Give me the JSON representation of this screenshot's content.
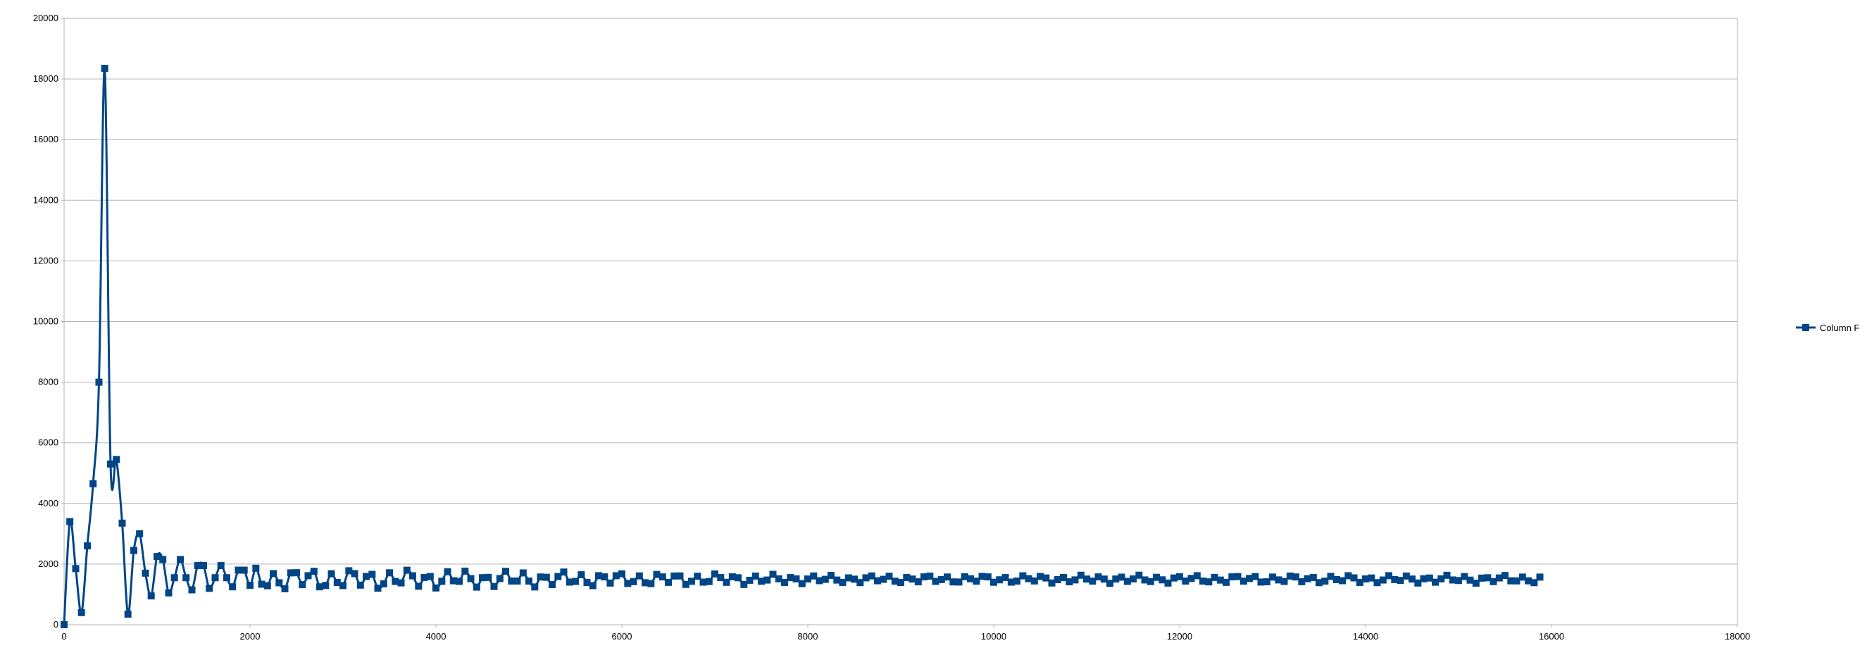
{
  "chart_data": {
    "type": "line",
    "title": "",
    "xlabel": "",
    "ylabel": "",
    "xlim": [
      0,
      18000
    ],
    "ylim": [
      0,
      20000
    ],
    "x_ticks": [
      0,
      2000,
      4000,
      6000,
      8000,
      10000,
      12000,
      14000,
      16000,
      18000
    ],
    "y_ticks": [
      0,
      2000,
      4000,
      6000,
      8000,
      10000,
      12000,
      14000,
      16000,
      18000,
      20000
    ],
    "x_tick_labels": [
      "0",
      "2000",
      "4000",
      "6000",
      "8000",
      "10000",
      "12000",
      "14000",
      "16000",
      "18000"
    ],
    "y_tick_labels": [
      "0",
      "2000",
      "4000",
      "6000",
      "8000",
      "10000",
      "12000",
      "14000",
      "16000",
      "18000",
      "20000"
    ],
    "grid": true,
    "legend_position": "right",
    "series": [
      {
        "name": "Column F",
        "color": "#004586",
        "marker": "square",
        "x": [
          0,
          62,
          125,
          187,
          250,
          312,
          375,
          437,
          500,
          562,
          625,
          687,
          750,
          812,
          875,
          937,
          1000,
          1062,
          1125,
          1187,
          1250,
          1312,
          1375,
          1437,
          1500,
          1562,
          1625,
          1687,
          1750,
          1812,
          1875,
          1937,
          2000
        ],
        "values": [
          0,
          3400,
          1850,
          400,
          2600,
          4650,
          8000,
          18350,
          5300,
          5450,
          3350,
          350,
          2450,
          3000,
          1700,
          950,
          2250,
          2150,
          1050,
          1550,
          2150,
          1550,
          1150,
          1950,
          1950,
          1200,
          1550,
          1950,
          1550,
          1250,
          1800,
          1800,
          1300
        ],
        "tail_start": 2000,
        "tail_end": 15937,
        "tail_step": 62.5,
        "tail_mean": 1500,
        "tail_amplitude_start": 300,
        "tail_amplitude_end": 100
      }
    ]
  }
}
